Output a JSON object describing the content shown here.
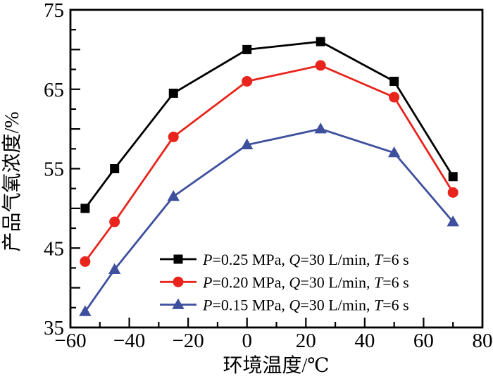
{
  "chart_data": {
    "type": "line",
    "x": [
      -55,
      -45,
      -25,
      0,
      25,
      50,
      70
    ],
    "series": [
      {
        "name": "P=0.25 MPa, Q=30 L/min, T=6 s",
        "color": "#000000",
        "marker": "square",
        "values": [
          50,
          55,
          64.5,
          70,
          71,
          66,
          54
        ]
      },
      {
        "name": "P=0.20 MPa, Q=30 L/min, T=6 s",
        "color": "#e8241c",
        "marker": "circle",
        "values": [
          43.3,
          48.3,
          59,
          66,
          68,
          64,
          52
        ]
      },
      {
        "name": "P=0.15 MPa, Q=30 L/min, T=6 s",
        "color": "#3e4f9e",
        "marker": "triangle",
        "values": [
          37,
          42.3,
          51.5,
          58,
          60,
          57,
          48.3
        ]
      }
    ],
    "title": "",
    "xlabel": "环境温度/℃",
    "ylabel": "产品气氧浓度/%",
    "xlim": [
      -60,
      80
    ],
    "ylim": [
      35,
      75
    ],
    "x_major_step": 20,
    "x_minor_step": 10,
    "y_major_step": 5,
    "y_minor_step": 2.5,
    "x_label_step": 20,
    "y_label_step": 10,
    "grid": false,
    "legend_position": "inside-lower-right",
    "axis_color": "#000000"
  }
}
